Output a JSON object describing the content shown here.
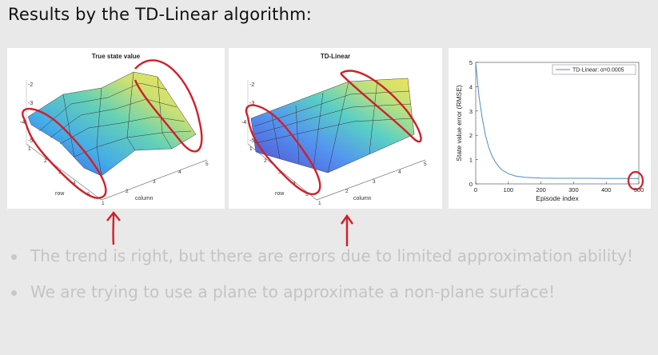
{
  "slide": {
    "title": "Results by the TD-Linear algorithm:"
  },
  "panels": {
    "true_value": {
      "title": "True state value",
      "z_ticks": [
        "-2",
        "-3",
        "-4",
        "-5"
      ],
      "row_label": "row",
      "col_label": "column",
      "row_ticks": [
        "1",
        "2",
        "3",
        "4",
        "5"
      ],
      "col_ticks": [
        "1",
        "2",
        "3",
        "4",
        "5"
      ]
    },
    "td_linear": {
      "title": "TD-Linear",
      "z_ticks": [
        "-2",
        "-3",
        "-4",
        "-5"
      ],
      "row_label": "row",
      "col_label": "column",
      "row_ticks": [
        "1",
        "2",
        "3",
        "4",
        "5"
      ],
      "col_ticks": [
        "1",
        "2",
        "3",
        "4",
        "5"
      ]
    }
  },
  "chart_data": {
    "type": "line",
    "title": "",
    "xlabel": "Episode index",
    "ylabel": "State value error (RMSE)",
    "xlim": [
      0,
      500
    ],
    "ylim": [
      0,
      5
    ],
    "x_ticks": [
      "0",
      "100",
      "200",
      "300",
      "400",
      "500"
    ],
    "y_ticks": [
      "0",
      "1",
      "2",
      "3",
      "4",
      "5"
    ],
    "legend_position": "top-right",
    "series": [
      {
        "name": "TD-Linear: α=0.0005",
        "color": "#4a8cc4",
        "x": [
          0,
          10,
          20,
          30,
          40,
          50,
          60,
          70,
          80,
          100,
          120,
          150,
          200,
          250,
          300,
          350,
          400,
          450,
          500
        ],
        "y": [
          5.0,
          3.6,
          2.7,
          2.0,
          1.5,
          1.15,
          0.9,
          0.72,
          0.58,
          0.42,
          0.33,
          0.27,
          0.24,
          0.23,
          0.23,
          0.23,
          0.22,
          0.22,
          0.22
        ]
      }
    ]
  },
  "bullets": [
    "The trend is right, but there are errors due to limited approximation ability!",
    "We are trying to use a plane to approximate a non-plane surface!"
  ],
  "colors": {
    "annotation": "#d0202a",
    "bullet_text": "#c4c4c4",
    "background": "#e9e9e9"
  }
}
